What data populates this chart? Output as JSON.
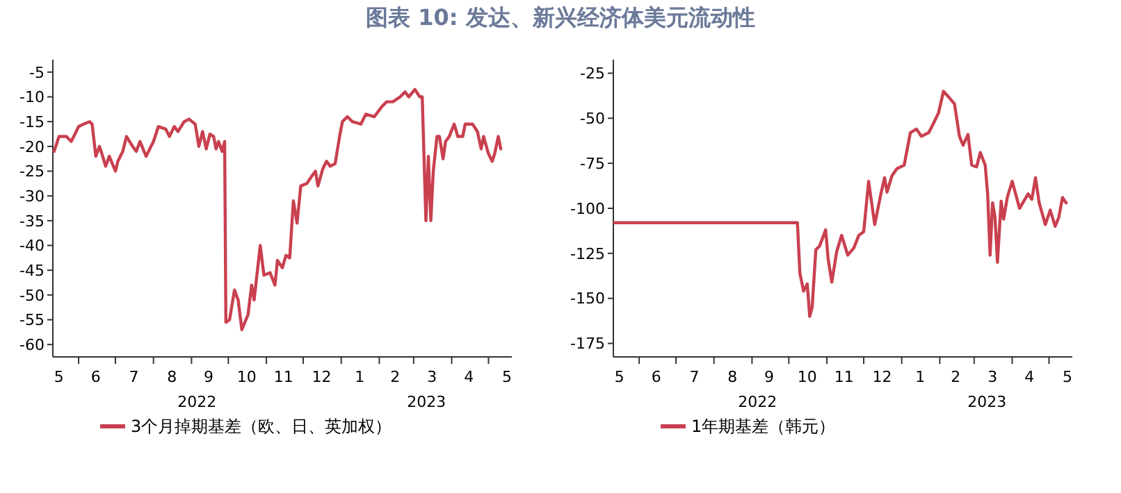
{
  "chart_data": [
    {
      "type": "line",
      "title": "图表 10: 发达、新兴经济体美元流动性",
      "legend": "bottom",
      "xlim": [
        "2022-05-11",
        "2023-05-20"
      ],
      "xticks": [
        {
          "value": "2022-05-16",
          "label": "5"
        },
        {
          "value": "2022-06-01",
          "label": null
        },
        {
          "value": "2022-06-15",
          "label": "6"
        },
        {
          "value": "2022-07-01",
          "label": null
        },
        {
          "value": "2022-07-16",
          "label": "7"
        },
        {
          "value": "2022-08-01",
          "label": null
        },
        {
          "value": "2022-08-16",
          "label": "8"
        },
        {
          "value": "2022-09-01",
          "label": null
        },
        {
          "value": "2022-09-15",
          "label": "9"
        },
        {
          "value": "2022-10-01",
          "label": null
        },
        {
          "value": "2022-10-16",
          "label": "10"
        },
        {
          "value": "2022-11-01",
          "label": null
        },
        {
          "value": "2022-11-15",
          "label": "11"
        },
        {
          "value": "2022-12-01",
          "label": null
        },
        {
          "value": "2022-12-16",
          "label": "12"
        },
        {
          "value": "2023-01-01",
          "label": null
        },
        {
          "value": "2023-01-16",
          "label": "1"
        },
        {
          "value": "2023-02-01",
          "label": null
        },
        {
          "value": "2023-02-14",
          "label": "2"
        },
        {
          "value": "2023-03-01",
          "label": null
        },
        {
          "value": "2023-03-16",
          "label": "3"
        },
        {
          "value": "2023-04-01",
          "label": null
        },
        {
          "value": "2023-04-15",
          "label": "4"
        },
        {
          "value": "2023-05-01",
          "label": null
        },
        {
          "value": "2023-05-16",
          "label": "5"
        }
      ],
      "ylim": [
        -62.5,
        -2.5
      ],
      "yticks": [
        -5,
        -10,
        -15,
        -20,
        -25,
        -30,
        -35,
        -40,
        -45,
        -50,
        -55,
        -60
      ],
      "annotations": [
        "2022",
        "2023"
      ],
      "series": [
        {
          "name": "3个月掉期基差（欧、日、英加权）",
          "color": "#c9404f",
          "x": [
            "2022-05-12",
            "2022-05-16",
            "2022-05-22",
            "2022-05-26",
            "2022-06-01",
            "2022-06-05",
            "2022-06-10",
            "2022-06-12",
            "2022-06-15",
            "2022-06-18",
            "2022-06-20",
            "2022-06-23",
            "2022-06-26",
            "2022-07-01",
            "2022-07-03",
            "2022-07-07",
            "2022-07-10",
            "2022-07-15",
            "2022-07-18",
            "2022-07-21",
            "2022-07-26",
            "2022-08-01",
            "2022-08-05",
            "2022-08-11",
            "2022-08-14",
            "2022-08-18",
            "2022-08-21",
            "2022-08-26",
            "2022-08-30",
            "2022-09-04",
            "2022-09-07",
            "2022-09-10",
            "2022-09-13",
            "2022-09-16",
            "2022-09-19",
            "2022-09-21",
            "2022-09-23",
            "2022-09-26",
            "2022-09-28",
            "2022-09-29",
            "2022-10-02",
            "2022-10-06",
            "2022-10-09",
            "2022-10-12",
            "2022-10-17",
            "2022-10-20",
            "2022-10-22",
            "2022-10-27",
            "2022-10-30",
            "2022-11-04",
            "2022-11-08",
            "2022-11-10",
            "2022-11-14",
            "2022-11-17",
            "2022-11-20",
            "2022-11-23",
            "2022-11-26",
            "2022-11-29",
            "2022-12-04",
            "2022-12-08",
            "2022-12-11",
            "2022-12-13",
            "2022-12-17",
            "2022-12-20",
            "2022-12-23",
            "2022-12-27",
            "2022-12-31",
            "2023-01-02",
            "2023-01-06",
            "2023-01-10",
            "2023-01-17",
            "2023-01-21",
            "2023-01-28",
            "2023-02-03",
            "2023-02-07",
            "2023-02-12",
            "2023-02-18",
            "2023-02-22",
            "2023-02-25",
            "2023-03-02",
            "2023-03-06",
            "2023-03-08",
            "2023-03-11",
            "2023-03-13",
            "2023-03-15",
            "2023-03-17",
            "2023-03-20",
            "2023-03-22",
            "2023-03-25",
            "2023-03-27",
            "2023-03-30",
            "2023-04-03",
            "2023-04-06",
            "2023-04-10",
            "2023-04-12",
            "2023-04-18",
            "2023-04-22",
            "2023-04-25",
            "2023-04-27",
            "2023-05-01",
            "2023-05-04",
            "2023-05-06",
            "2023-05-09",
            "2023-05-11"
          ],
          "values": [
            -21,
            -18,
            -18,
            -19,
            -16,
            -15.5,
            -15,
            -15.5,
            -22,
            -20,
            -21.5,
            -24,
            -22,
            -25,
            -23,
            -21,
            -18,
            -20,
            -21,
            -19,
            -22,
            -19,
            -16,
            -16.5,
            -18,
            -16,
            -17,
            -15,
            -14.5,
            -15.5,
            -20,
            -17,
            -20.5,
            -17.5,
            -18,
            -20.5,
            -19,
            -21,
            -19,
            -55.5,
            -55,
            -49,
            -51,
            -57,
            -54,
            -48,
            -51,
            -40,
            -46,
            -45.5,
            -48,
            -43,
            -44.5,
            -42,
            -42.5,
            -31,
            -35.5,
            -28,
            -27.5,
            -26,
            -25,
            -28,
            -24.5,
            -23,
            -24,
            -23.5,
            -17.5,
            -15,
            -14,
            -15,
            -15.5,
            -13.5,
            -14,
            -12,
            -11,
            -11,
            -10,
            -9,
            -10,
            -8.5,
            -10,
            -10,
            -35,
            -22,
            -35,
            -25,
            -18,
            -18,
            -22.5,
            -19,
            -18,
            -15.5,
            -18,
            -18,
            -15.5,
            -15.5,
            -17,
            -20.5,
            -18,
            -21.5,
            -23,
            -21.5,
            -18,
            -20.5
          ]
        }
      ]
    },
    {
      "type": "line",
      "legend": "bottom",
      "xlim": [
        "2022-05-11",
        "2023-05-20"
      ],
      "xticks": [
        {
          "value": "2022-05-16",
          "label": "5"
        },
        {
          "value": "2022-06-01",
          "label": null
        },
        {
          "value": "2022-06-15",
          "label": "6"
        },
        {
          "value": "2022-07-01",
          "label": null
        },
        {
          "value": "2022-07-16",
          "label": "7"
        },
        {
          "value": "2022-08-01",
          "label": null
        },
        {
          "value": "2022-08-16",
          "label": "8"
        },
        {
          "value": "2022-09-01",
          "label": null
        },
        {
          "value": "2022-09-15",
          "label": "9"
        },
        {
          "value": "2022-10-01",
          "label": null
        },
        {
          "value": "2022-10-16",
          "label": "10"
        },
        {
          "value": "2022-11-01",
          "label": null
        },
        {
          "value": "2022-11-15",
          "label": "11"
        },
        {
          "value": "2022-12-01",
          "label": null
        },
        {
          "value": "2022-12-16",
          "label": "12"
        },
        {
          "value": "2023-01-01",
          "label": null
        },
        {
          "value": "2023-01-16",
          "label": "1"
        },
        {
          "value": "2023-02-01",
          "label": null
        },
        {
          "value": "2023-02-14",
          "label": "2"
        },
        {
          "value": "2023-03-01",
          "label": null
        },
        {
          "value": "2023-03-16",
          "label": "3"
        },
        {
          "value": "2023-04-01",
          "label": null
        },
        {
          "value": "2023-04-15",
          "label": "4"
        },
        {
          "value": "2023-05-01",
          "label": null
        },
        {
          "value": "2023-05-16",
          "label": "5"
        }
      ],
      "ylim": [
        -182.5,
        -17.5
      ],
      "yticks": [
        -25,
        -50,
        -75,
        -100,
        -125,
        -150,
        -175
      ],
      "annotations": [
        "2022",
        "2023"
      ],
      "series": [
        {
          "name": "1年期基差（韩元）",
          "color": "#c9404f",
          "x": [
            "2022-05-12",
            "2022-10-08",
            "2022-10-10",
            "2022-10-13",
            "2022-10-16",
            "2022-10-18",
            "2022-10-20",
            "2022-10-23",
            "2022-10-26",
            "2022-10-31",
            "2022-11-02",
            "2022-11-05",
            "2022-11-09",
            "2022-11-13",
            "2022-11-18",
            "2022-11-23",
            "2022-11-27",
            "2022-12-01",
            "2022-12-05",
            "2022-12-10",
            "2022-12-15",
            "2022-12-18",
            "2022-12-20",
            "2022-12-24",
            "2022-12-28",
            "2023-01-03",
            "2023-01-08",
            "2023-01-13",
            "2023-01-17",
            "2023-01-23",
            "2023-01-26",
            "2023-01-31",
            "2023-02-04",
            "2023-02-08",
            "2023-02-13",
            "2023-02-17",
            "2023-02-20",
            "2023-02-24",
            "2023-02-27",
            "2023-03-03",
            "2023-03-06",
            "2023-03-10",
            "2023-03-12",
            "2023-03-14",
            "2023-03-16",
            "2023-03-18",
            "2023-03-20",
            "2023-03-23",
            "2023-03-25",
            "2023-03-28",
            "2023-04-01",
            "2023-04-07",
            "2023-04-14",
            "2023-04-17",
            "2023-04-20",
            "2023-04-23",
            "2023-04-28",
            "2023-05-02",
            "2023-05-06",
            "2023-05-09",
            "2023-05-12",
            "2023-05-15"
          ],
          "values": [
            -108,
            -108,
            -136,
            -146,
            -142,
            -160,
            -155,
            -123,
            -121,
            -112,
            -128,
            -141,
            -124,
            -115,
            -126,
            -122,
            -115,
            -113,
            -85,
            -109,
            -92,
            -83,
            -91,
            -82,
            -78,
            -76,
            -58,
            -56,
            -60,
            -58,
            -54,
            -47,
            -35,
            -38,
            -42,
            -60,
            -65,
            -59,
            -76,
            -77,
            -69,
            -76,
            -92,
            -126,
            -97,
            -105,
            -130,
            -96,
            -106,
            -94,
            -85,
            -100,
            -92,
            -95,
            -83,
            -97,
            -109,
            -101,
            -110,
            -105,
            -94,
            -97
          ]
        }
      ]
    }
  ]
}
